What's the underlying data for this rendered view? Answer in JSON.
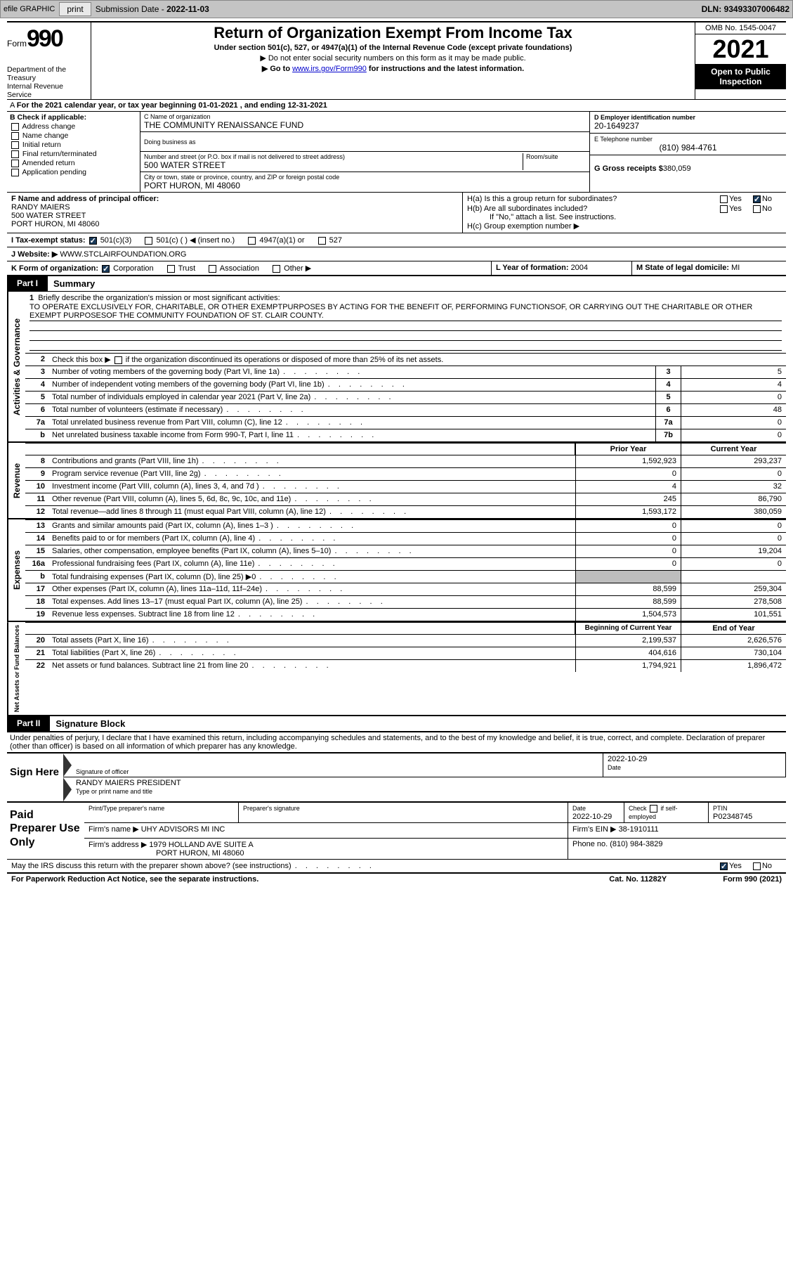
{
  "toolbar": {
    "efile": "efile GRAPHIC",
    "print": "print",
    "subdate_lbl": "Submission Date - ",
    "subdate": "2022-11-03",
    "dln_lbl": "DLN: ",
    "dln": "93493307006482"
  },
  "hdr": {
    "form_word": "Form",
    "form_num": "990",
    "title": "Return of Organization Exempt From Income Tax",
    "sub": "Under section 501(c), 527, or 4947(a)(1) of the Internal Revenue Code (except private foundations)",
    "sub2a": "▶ Do not enter social security numbers on this form as it may be made public.",
    "sub2b_pre": "▶ Go to ",
    "sub2b_link": "www.irs.gov/Form990",
    "sub2b_post": " for instructions and the latest information.",
    "dept": "Department of the Treasury\nInternal Revenue Service",
    "omb": "OMB No. 1545-0047",
    "year": "2021",
    "open": "Open to Public Inspection"
  },
  "period": {
    "text": "For the 2021 calendar year, or tax year beginning 01-01-2021    , and ending 12-31-2021"
  },
  "B": {
    "label": "B Check if applicable:",
    "opts": [
      "Address change",
      "Name change",
      "Initial return",
      "Final return/terminated",
      "Amended return",
      "Application pending"
    ]
  },
  "C": {
    "name_lbl": "C Name of organization",
    "name": "THE COMMUNITY RENAISSANCE FUND",
    "dba_lbl": "Doing business as",
    "dba": "",
    "street_lbl": "Number and street (or P.O. box if mail is not delivered to street address)",
    "room_lbl": "Room/suite",
    "street": "500 WATER STREET",
    "city_lbl": "City or town, state or province, country, and ZIP or foreign postal code",
    "city": "PORT HURON, MI  48060"
  },
  "D": {
    "lbl": "D Employer identification number",
    "val": "20-1649237"
  },
  "E": {
    "lbl": "E Telephone number",
    "val": "(810) 984-4761"
  },
  "G": {
    "lbl": "G Gross receipts $ ",
    "val": "380,059"
  },
  "F": {
    "lbl": "F  Name and address of principal officer:",
    "l1": "RANDY MAIERS",
    "l2": "500 WATER STREET",
    "l3": "PORT HURON, MI  48060"
  },
  "H": {
    "a": "H(a)  Is this a group return for subordinates?",
    "b": "H(b)  Are all subordinates included?",
    "b_note": "If \"No,\" attach a list. See instructions.",
    "c": "H(c)  Group exemption number ▶",
    "yes": "Yes",
    "no": "No"
  },
  "I": {
    "lbl": "I    Tax-exempt status:",
    "o1": "501(c)(3)",
    "o2": "501(c) (  ) ◀ (insert no.)",
    "o3": "4947(a)(1) or",
    "o4": "527"
  },
  "J": {
    "lbl": "J    Website: ▶",
    "val": "  WWW.STCLAIRFOUNDATION.ORG"
  },
  "K": {
    "lbl": "K Form of organization:",
    "o1": "Corporation",
    "o2": "Trust",
    "o3": "Association",
    "o4": "Other ▶"
  },
  "L": {
    "lbl": "L Year of formation: ",
    "val": "2004"
  },
  "M": {
    "lbl": "M State of legal domicile: ",
    "val": "MI"
  },
  "part1": {
    "hdr": "Part I",
    "title": "Summary"
  },
  "sideA": "Activities & Governance",
  "sideR": "Revenue",
  "sideE": "Expenses",
  "sideN": "Net Assets or Fund Balances",
  "l1": {
    "num": "1",
    "desc": "Briefly describe the organization's mission or most significant activities:",
    "text": "TO OPERATE EXCLUSIVELY FOR, CHARITABLE, OR OTHER EXEMPTPURPOSES BY ACTING FOR THE BENEFIT OF, PERFORMING FUNCTIONSOF, OR CARRYING OUT THE CHARITABLE OR OTHER EXEMPT PURPOSESOF THE COMMUNITY FOUNDATION OF ST. CLAIR COUNTY."
  },
  "l2": {
    "num": "2",
    "desc": "Check this box ▶        if the organization discontinued its operations or disposed of more than 25% of its net assets."
  },
  "lines_ag": [
    {
      "num": "3",
      "desc": "Number of voting members of the governing body (Part VI, line 1a)",
      "box": "3",
      "val": "5"
    },
    {
      "num": "4",
      "desc": "Number of independent voting members of the governing body (Part VI, line 1b)",
      "box": "4",
      "val": "4"
    },
    {
      "num": "5",
      "desc": "Total number of individuals employed in calendar year 2021 (Part V, line 2a)",
      "box": "5",
      "val": "0"
    },
    {
      "num": "6",
      "desc": "Total number of volunteers (estimate if necessary)",
      "box": "6",
      "val": "48"
    },
    {
      "num": "7a",
      "desc": "Total unrelated business revenue from Part VIII, column (C), line 12",
      "box": "7a",
      "val": "0"
    },
    {
      "num": "b",
      "desc": "Net unrelated business taxable income from Form 990-T, Part I, line 11",
      "box": "7b",
      "val": "0"
    }
  ],
  "col_hdr": {
    "prior": "Prior Year",
    "current": "Current Year",
    "boy": "Beginning of Current Year",
    "eoy": "End of Year"
  },
  "lines_rev": [
    {
      "num": "8",
      "desc": "Contributions and grants (Part VIII, line 1h)",
      "p": "1,592,923",
      "c": "293,237"
    },
    {
      "num": "9",
      "desc": "Program service revenue (Part VIII, line 2g)",
      "p": "0",
      "c": "0"
    },
    {
      "num": "10",
      "desc": "Investment income (Part VIII, column (A), lines 3, 4, and 7d )",
      "p": "4",
      "c": "32"
    },
    {
      "num": "11",
      "desc": "Other revenue (Part VIII, column (A), lines 5, 6d, 8c, 9c, 10c, and 11e)",
      "p": "245",
      "c": "86,790"
    },
    {
      "num": "12",
      "desc": "Total revenue—add lines 8 through 11 (must equal Part VIII, column (A), line 12)",
      "p": "1,593,172",
      "c": "380,059"
    }
  ],
  "lines_exp": [
    {
      "num": "13",
      "desc": "Grants and similar amounts paid (Part IX, column (A), lines 1–3 )",
      "p": "0",
      "c": "0"
    },
    {
      "num": "14",
      "desc": "Benefits paid to or for members (Part IX, column (A), line 4)",
      "p": "0",
      "c": "0"
    },
    {
      "num": "15",
      "desc": "Salaries, other compensation, employee benefits (Part IX, column (A), lines 5–10)",
      "p": "0",
      "c": "19,204"
    },
    {
      "num": "16a",
      "desc": "Professional fundraising fees (Part IX, column (A), line 11e)",
      "p": "0",
      "c": "0"
    },
    {
      "num": "b",
      "desc": "Total fundraising expenses (Part IX, column (D), line 25) ▶0",
      "p": "",
      "c": "",
      "shaded": true
    },
    {
      "num": "17",
      "desc": "Other expenses (Part IX, column (A), lines 11a–11d, 11f–24e)",
      "p": "88,599",
      "c": "259,304"
    },
    {
      "num": "18",
      "desc": "Total expenses. Add lines 13–17 (must equal Part IX, column (A), line 25)",
      "p": "88,599",
      "c": "278,508"
    },
    {
      "num": "19",
      "desc": "Revenue less expenses. Subtract line 18 from line 12",
      "p": "1,504,573",
      "c": "101,551"
    }
  ],
  "lines_net": [
    {
      "num": "20",
      "desc": "Total assets (Part X, line 16)",
      "p": "2,199,537",
      "c": "2,626,576"
    },
    {
      "num": "21",
      "desc": "Total liabilities (Part X, line 26)",
      "p": "404,616",
      "c": "730,104"
    },
    {
      "num": "22",
      "desc": "Net assets or fund balances. Subtract line 21 from line 20",
      "p": "1,794,921",
      "c": "1,896,472"
    }
  ],
  "part2": {
    "hdr": "Part II",
    "title": "Signature Block"
  },
  "sig": {
    "decl": "Under penalties of perjury, I declare that I have examined this return, including accompanying schedules and statements, and to the best of my knowledge and belief, it is true, correct, and complete. Declaration of preparer (other than officer) is based on all information of which preparer has any knowledge.",
    "sign_here": "Sign Here",
    "sig_officer": "Signature of officer",
    "date_lbl": "Date",
    "date": "2022-10-29",
    "name": "RANDY MAIERS  PRESIDENT",
    "name_lbl": "Type or print name and title"
  },
  "prep": {
    "left": "Paid Preparer Use Only",
    "h1": "Print/Type preparer's name",
    "h2": "Preparer's signature",
    "h3_lbl": "Date",
    "h3": "2022-10-29",
    "h4": "Check        if self-employed",
    "h5_lbl": "PTIN",
    "h5": "P02348745",
    "firm_name_lbl": "Firm's name    ▶ ",
    "firm_name": "UHY ADVISORS MI INC",
    "firm_ein_lbl": "Firm's EIN ▶ ",
    "firm_ein": "38-1910111",
    "firm_addr_lbl": "Firm's address ▶ ",
    "firm_addr": "1979 HOLLAND AVE SUITE A",
    "firm_addr2": "PORT HURON, MI  48060",
    "phone_lbl": "Phone no. ",
    "phone": "(810) 984-3829"
  },
  "discuss": {
    "q": "May the IRS discuss this return with the preparer shown above? (see instructions)",
    "yes": "Yes",
    "no": "No"
  },
  "footer": {
    "left": "For Paperwork Reduction Act Notice, see the separate instructions.",
    "mid": "Cat. No. 11282Y",
    "right": "Form 990 (2021)"
  }
}
